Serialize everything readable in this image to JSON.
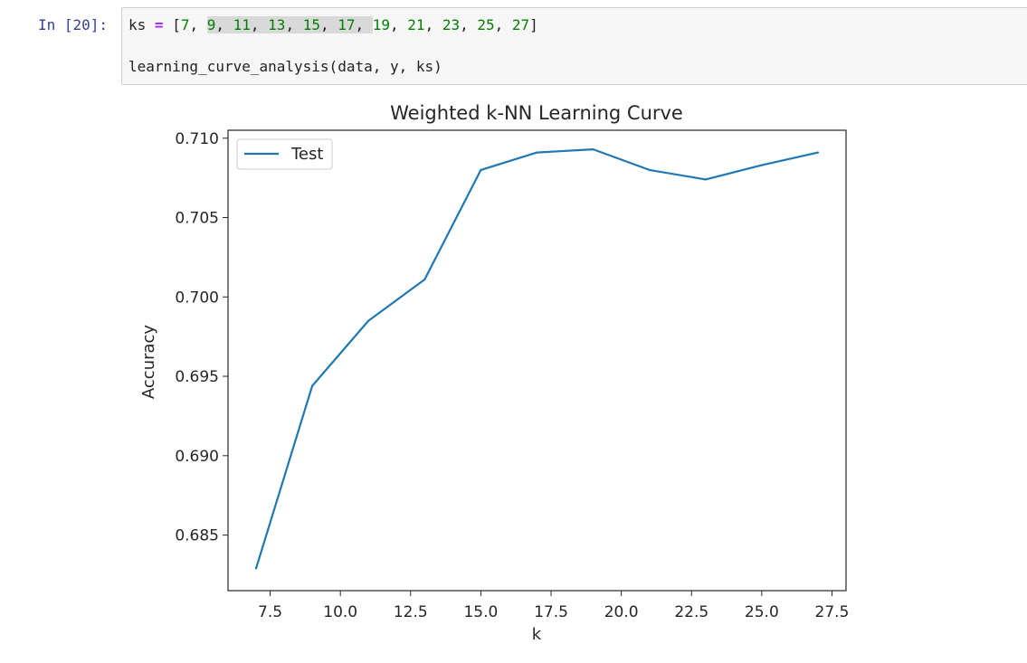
{
  "cell": {
    "prompt": "In [20]:",
    "code_line1": {
      "var": "ks",
      "op": "=",
      "values": [
        "7",
        "9",
        "11",
        "13",
        "15",
        "17",
        "19",
        "21",
        "23",
        "25",
        "27"
      ]
    },
    "code_line2": "learning_curve_analysis(data, y, ks)"
  },
  "chart_data": {
    "type": "line",
    "title": "Weighted k-NN Learning Curve",
    "xlabel": "k",
    "ylabel": "Accuracy",
    "xlim": [
      6.0,
      28.0
    ],
    "ylim": [
      0.6815,
      0.7105
    ],
    "x_ticks": [
      "7.5",
      "10.0",
      "12.5",
      "15.0",
      "17.5",
      "20.0",
      "22.5",
      "25.0",
      "27.5"
    ],
    "y_ticks": [
      "0.685",
      "0.690",
      "0.695",
      "0.700",
      "0.705",
      "0.710"
    ],
    "grid": false,
    "legend": "upper-left",
    "series": [
      {
        "name": "Test",
        "color": "#1f77b4",
        "x": [
          7,
          9,
          11,
          13,
          15,
          17,
          19,
          21,
          23,
          25,
          27
        ],
        "y": [
          0.6829,
          0.6944,
          0.6985,
          0.7011,
          0.708,
          0.7091,
          0.7093,
          0.708,
          0.7074,
          0.7083,
          0.7091
        ]
      }
    ]
  }
}
